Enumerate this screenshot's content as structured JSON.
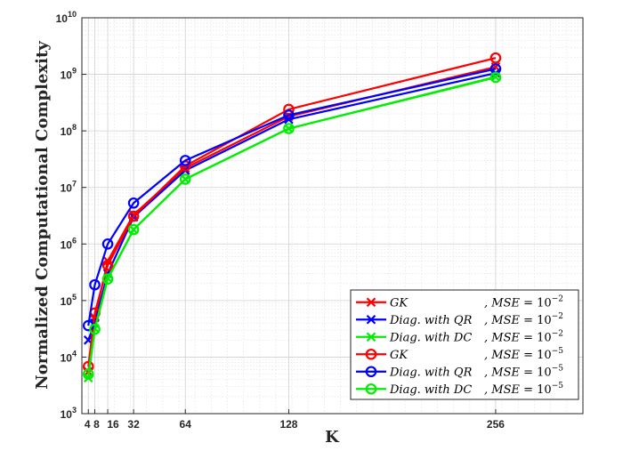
{
  "chart_data": {
    "type": "line",
    "xlabel": "K",
    "ylabel": "Normalized Computational Complexity",
    "xlim": [
      0,
      310
    ],
    "ylim": [
      1000,
      10000000000
    ],
    "yscale": "log",
    "grid": true,
    "minor_grid": true,
    "legend_position": "bottom-right",
    "x_ticks": [
      {
        "value": 4,
        "label": "4"
      },
      {
        "value": 8,
        "label": "8"
      },
      {
        "value": 16,
        "label": "16"
      },
      {
        "value": 32,
        "label": "32"
      },
      {
        "value": 64,
        "label": "64"
      },
      {
        "value": 128,
        "label": "128"
      },
      {
        "value": 256,
        "label": "256"
      }
    ],
    "y_ticks": [
      {
        "value": 1000,
        "base": "10",
        "exp": "3"
      },
      {
        "value": 10000,
        "base": "10",
        "exp": "4"
      },
      {
        "value": 100000,
        "base": "10",
        "exp": "5"
      },
      {
        "value": 1000000,
        "base": "10",
        "exp": "6"
      },
      {
        "value": 10000000,
        "base": "10",
        "exp": "7"
      },
      {
        "value": 100000000,
        "base": "10",
        "exp": "8"
      },
      {
        "value": 1000000000,
        "base": "10",
        "exp": "9"
      },
      {
        "value": 10000000000,
        "base": "10",
        "exp": "10"
      }
    ],
    "x": [
      4,
      8,
      16,
      32,
      64,
      128,
      256
    ],
    "series": [
      {
        "name": "GK, MSE = 10^-2",
        "label_main": "GK",
        "label_mse": ", MSE = ",
        "label_exp": "−2",
        "color": "#ff0000",
        "marker": "x",
        "values": [
          5500,
          50000,
          500000,
          3300000,
          22000000,
          180000000,
          1350000000
        ]
      },
      {
        "name": "Diag. with QR, MSE = 10^-2",
        "label_main": "Diag. with QR",
        "label_mse": ", MSE = ",
        "label_exp": "−2",
        "color": "#0000ff",
        "marker": "x",
        "values": [
          20000,
          40000,
          300000,
          3000000,
          20000000,
          160000000,
          1050000000
        ]
      },
      {
        "name": "Diag. with DC, MSE = 10^-2",
        "label_main": "Diag. with DC",
        "label_mse": ", MSE = ",
        "label_exp": "−2",
        "color": "#00ee00",
        "marker": "x",
        "values": [
          4300,
          32000,
          250000,
          1800000,
          14000000,
          110000000,
          900000000
        ]
      },
      {
        "name": "GK, MSE = 10^-5",
        "label_main": "GK",
        "label_mse": ", MSE = ",
        "label_exp": "−5",
        "color": "#ff0000",
        "marker": "o",
        "values": [
          6800,
          60000,
          420000,
          3100000,
          24000000,
          240000000,
          1950000000
        ]
      },
      {
        "name": "Diag. with QR, MSE = 10^-5",
        "label_main": "Diag. with QR",
        "label_mse": ", MSE = ",
        "label_exp": "−5",
        "color": "#0000ff",
        "marker": "o",
        "values": [
          36000,
          190000,
          1000000,
          5300000,
          30000000,
          190000000,
          1250000000
        ]
      },
      {
        "name": "Diag. with DC, MSE = 10^-5",
        "label_main": "Diag. with DC",
        "label_mse": ", MSE = ",
        "label_exp": "−5",
        "color": "#00ee00",
        "marker": "o",
        "values": [
          5000,
          31000,
          240000,
          1800000,
          14000000,
          110000000,
          880000000
        ]
      }
    ]
  }
}
